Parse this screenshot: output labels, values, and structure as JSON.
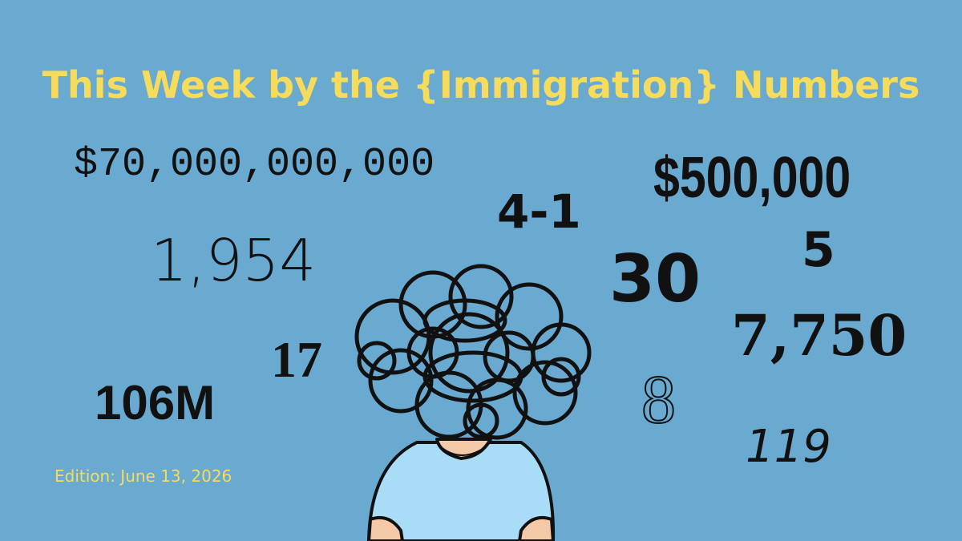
{
  "title": "This Week by the {Immigration} Numbers",
  "numbers": [
    "$70,000,000,000",
    "4-1",
    "$500,000",
    "1,954",
    "30",
    "5",
    "17",
    "7,750",
    "106M",
    "8",
    "119"
  ],
  "edition": "Edition: June 13, 2026"
}
